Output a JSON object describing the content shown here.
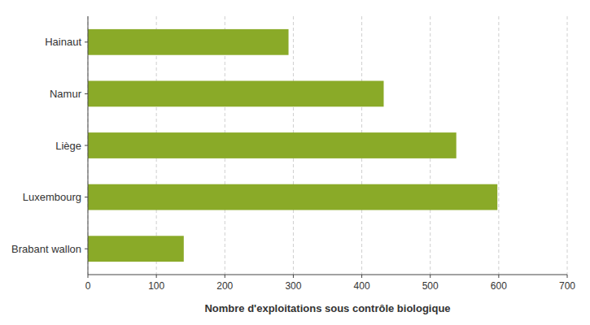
{
  "chart_data": {
    "type": "bar",
    "orientation": "horizontal",
    "categories": [
      "Hainaut",
      "Namur",
      "Liège",
      "Luxembourg",
      "Brabant wallon"
    ],
    "values": [
      293,
      432,
      538,
      598,
      140
    ],
    "color": "#8aaa28",
    "xlabel": "Nombre d'exploitations sous contrôle biologique",
    "xlim": [
      0,
      700
    ],
    "xticks": [
      0,
      100,
      200,
      300,
      400,
      500,
      600,
      700
    ],
    "grid": true
  }
}
